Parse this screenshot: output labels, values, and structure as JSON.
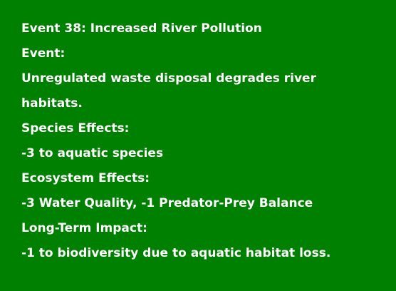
{
  "event": {
    "title": "Event 38: Increased River Pollution",
    "event_label": "Event:",
    "event_text": "Unregulated waste disposal degrades river habitats.",
    "species_label": "Species Effects:",
    "species_text": "-3 to aquatic species",
    "ecosystem_label": "Ecosystem Effects:",
    "ecosystem_text": "-3 Water Quality, -1 Predator-Prey Balance",
    "impact_label": "Long-Term Impact:",
    "impact_text": "-1 to biodiversity due to aquatic habitat loss."
  },
  "colors": {
    "background": "#008000",
    "text": "#ffffff"
  }
}
